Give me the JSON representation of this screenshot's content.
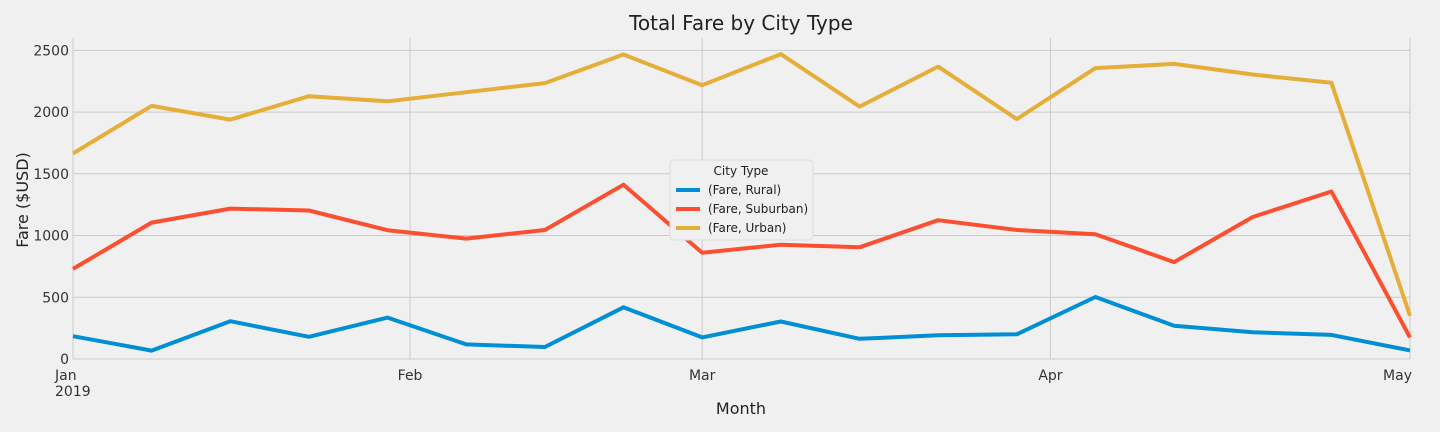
{
  "chart_data": {
    "type": "line",
    "title": "Total Fare by City Type",
    "xlabel": "Month",
    "ylabel": "Fare ($USD)",
    "x": [
      "2019-01-06",
      "2019-01-13",
      "2019-01-20",
      "2019-01-27",
      "2019-02-03",
      "2019-02-10",
      "2019-02-17",
      "2019-02-24",
      "2019-03-03",
      "2019-03-10",
      "2019-03-17",
      "2019-03-24",
      "2019-03-31",
      "2019-04-07",
      "2019-04-14",
      "2019-04-21",
      "2019-04-28",
      "2019-05-05"
    ],
    "xlim": [
      "2019-01-06",
      "2019-05-05"
    ],
    "x_ticks": [
      {
        "date": "2019-01-06",
        "label": "Jan",
        "sublabel": "2019"
      },
      {
        "date": "2019-02-05",
        "label": "Feb",
        "sublabel": ""
      },
      {
        "date": "2019-03-03",
        "label": "Mar",
        "sublabel": ""
      },
      {
        "date": "2019-04-03",
        "label": "Apr",
        "sublabel": ""
      },
      {
        "date": "2019-05-05",
        "label": "May",
        "sublabel": ""
      }
    ],
    "ylim": [
      0,
      2600
    ],
    "y_ticks": [
      0,
      500,
      1000,
      1500,
      2000,
      2500
    ],
    "grid": true,
    "legend": {
      "title": "City Type",
      "placement": "center"
    },
    "series": [
      {
        "name": "(Fare, Rural)",
        "color": "#008fd5",
        "values": [
          185,
          68,
          306,
          180,
          335,
          118,
          97,
          419,
          175,
          304,
          164,
          192,
          200,
          502,
          270,
          216,
          195,
          70
        ]
      },
      {
        "name": "(Fare, Suburban)",
        "color": "#fc4f30",
        "values": [
          730,
          1105,
          1218,
          1203,
          1043,
          975,
          1045,
          1412,
          860,
          926,
          905,
          1124,
          1045,
          1011,
          785,
          1150,
          1357,
          175
        ]
      },
      {
        "name": "(Fare, Urban)",
        "color": "#e5ae38",
        "values": [
          1665,
          2050,
          1939,
          2129,
          2087,
          2161,
          2235,
          2466,
          2218,
          2470,
          2044,
          2368,
          1943,
          2356,
          2390,
          2304,
          2237,
          350
        ]
      }
    ]
  }
}
